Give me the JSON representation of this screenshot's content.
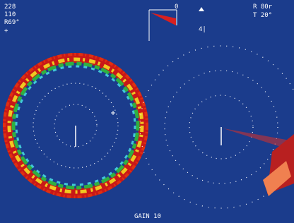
{
  "status": {
    "top_left": [
      "228",
      "110",
      "R69°",
      "+"
    ],
    "top_right": [
      "R 80r",
      "T 20°"
    ],
    "heading_marker": "0",
    "tilt_marker": "4|",
    "bottom": "GAIN 10"
  }
}
